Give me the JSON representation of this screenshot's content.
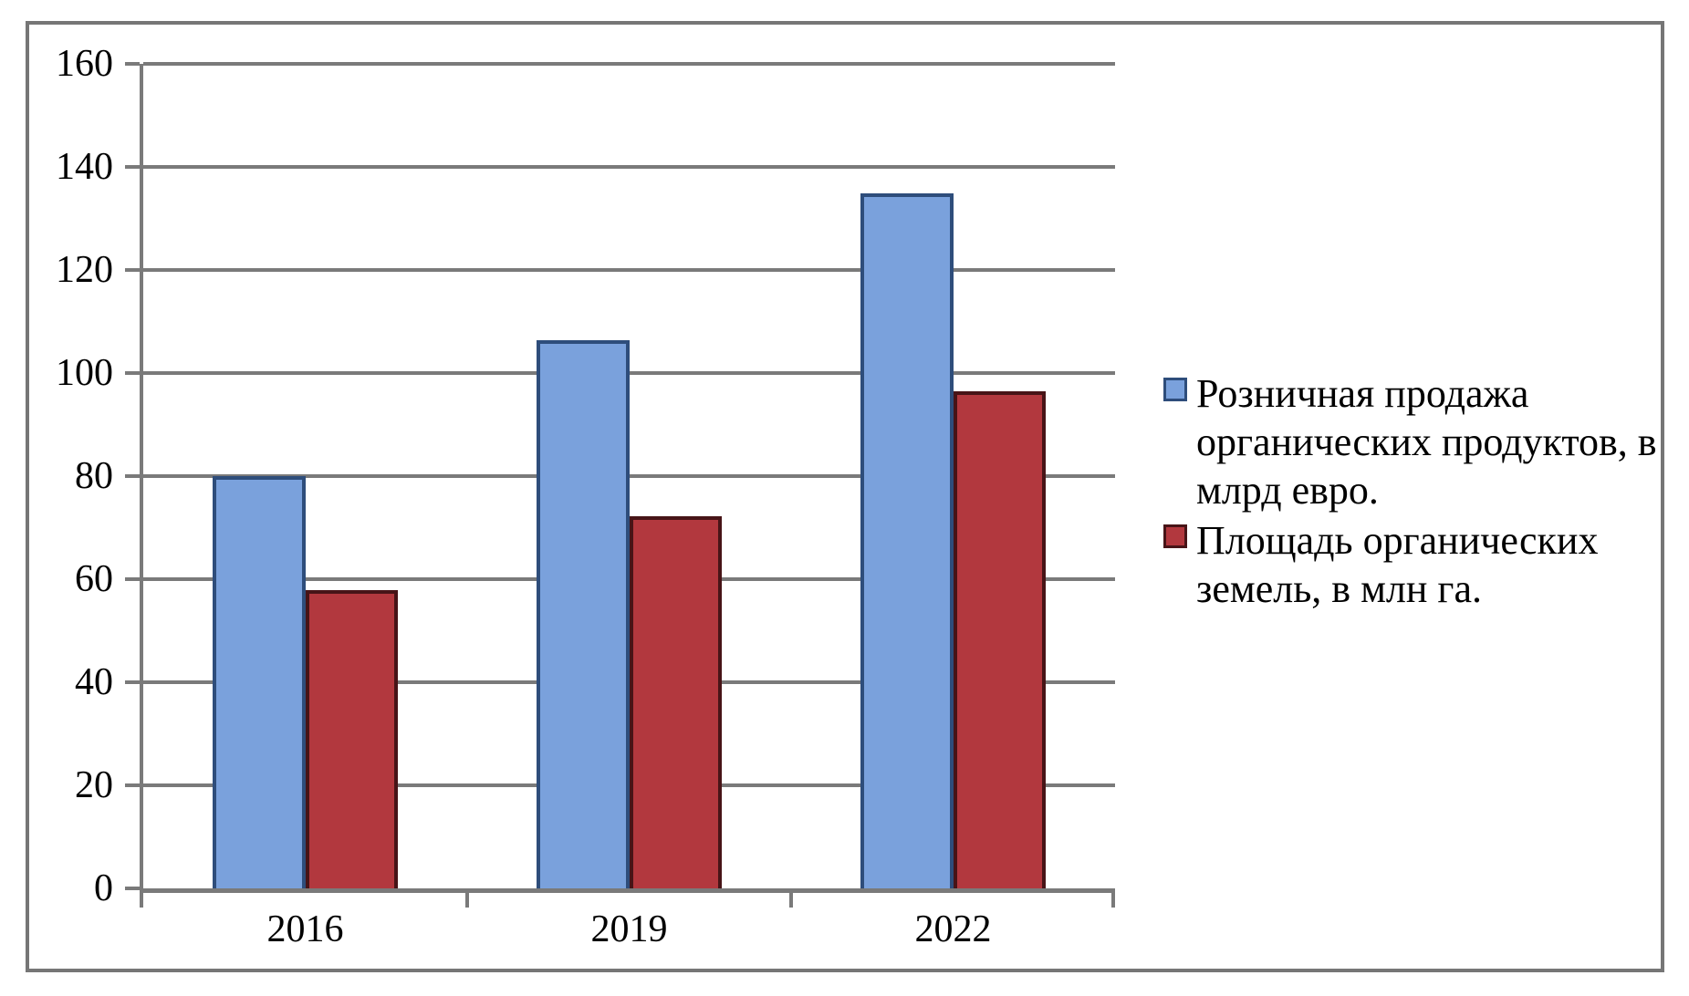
{
  "chart_data": {
    "type": "bar",
    "title": "",
    "xlabel": "",
    "ylabel": "",
    "categories": [
      "2016",
      "2019",
      "2022"
    ],
    "series": [
      {
        "name": "Розничная продажа органических продуктов, в млрд евро.",
        "values": [
          80,
          106.4,
          134.8
        ],
        "fill": "#7AA1DC",
        "border": "#2E4D7B"
      },
      {
        "name": "Площадь органических земель, в млн га.",
        "values": [
          57.8,
          72.3,
          96.4
        ],
        "fill": "#B2383E",
        "border": "#471417"
      }
    ],
    "ylim": [
      0,
      160
    ],
    "yticks": [
      0,
      20,
      40,
      60,
      80,
      100,
      120,
      140,
      160
    ],
    "grid": "horizontal",
    "legend_position": "right"
  },
  "colors": {
    "grid": "#7A7A7A",
    "axis": "#7A7A7A",
    "frame": "#767676",
    "text": "#000000",
    "background": "#FFFFFF"
  }
}
